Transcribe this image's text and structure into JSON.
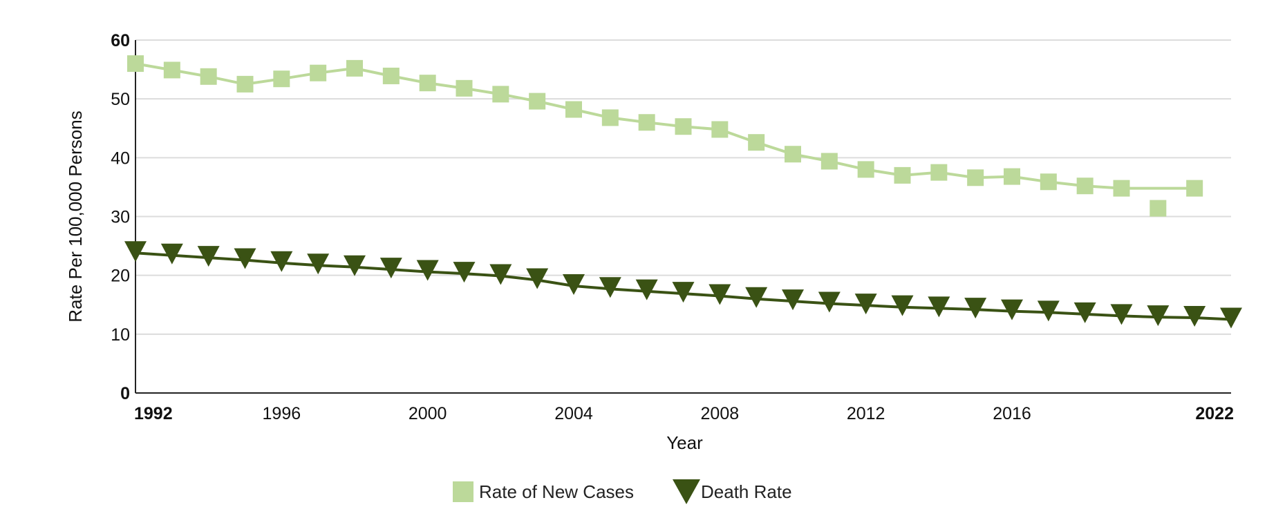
{
  "chart_data": {
    "type": "line",
    "xlabel": "Year",
    "ylabel": "Rate Per 100,000 Persons",
    "xlim": [
      1992,
      2022
    ],
    "ylim": [
      0,
      60
    ],
    "x_ticks": [
      {
        "value": 1992,
        "label": "1992",
        "bold": true
      },
      {
        "value": 1996,
        "label": "1996",
        "bold": false
      },
      {
        "value": 2000,
        "label": "2000",
        "bold": false
      },
      {
        "value": 2004,
        "label": "2004",
        "bold": false
      },
      {
        "value": 2008,
        "label": "2008",
        "bold": false
      },
      {
        "value": 2012,
        "label": "2012",
        "bold": false
      },
      {
        "value": 2016,
        "label": "2016",
        "bold": false
      },
      {
        "value": 2022,
        "label": "2022",
        "bold": true
      }
    ],
    "y_ticks": [
      {
        "value": 0,
        "label": "0",
        "bold": true
      },
      {
        "value": 10,
        "label": "10",
        "bold": false
      },
      {
        "value": 20,
        "label": "20",
        "bold": false
      },
      {
        "value": 30,
        "label": "30",
        "bold": false
      },
      {
        "value": 40,
        "label": "40",
        "bold": false
      },
      {
        "value": 50,
        "label": "50",
        "bold": false
      },
      {
        "value": 60,
        "label": "60",
        "bold": true
      }
    ],
    "grid": true,
    "legend_position": "bottom-center",
    "series": [
      {
        "name": "Rate of New Cases",
        "color": "#bcd99a",
        "marker": "square",
        "line_end_year": 2021,
        "points": [
          {
            "x": 1992,
            "y": 56.0
          },
          {
            "x": 1993,
            "y": 54.9
          },
          {
            "x": 1994,
            "y": 53.8
          },
          {
            "x": 1995,
            "y": 52.5
          },
          {
            "x": 1996,
            "y": 53.4
          },
          {
            "x": 1997,
            "y": 54.4
          },
          {
            "x": 1998,
            "y": 55.2
          },
          {
            "x": 1999,
            "y": 53.9
          },
          {
            "x": 2000,
            "y": 52.7
          },
          {
            "x": 2001,
            "y": 51.8
          },
          {
            "x": 2002,
            "y": 50.8
          },
          {
            "x": 2003,
            "y": 49.6
          },
          {
            "x": 2004,
            "y": 48.2
          },
          {
            "x": 2005,
            "y": 46.8
          },
          {
            "x": 2006,
            "y": 46.0
          },
          {
            "x": 2007,
            "y": 45.3
          },
          {
            "x": 2008,
            "y": 44.8
          },
          {
            "x": 2009,
            "y": 42.6
          },
          {
            "x": 2010,
            "y": 40.6
          },
          {
            "x": 2011,
            "y": 39.4
          },
          {
            "x": 2012,
            "y": 38.0
          },
          {
            "x": 2013,
            "y": 37.0
          },
          {
            "x": 2014,
            "y": 37.5
          },
          {
            "x": 2015,
            "y": 36.6
          },
          {
            "x": 2016,
            "y": 36.8
          },
          {
            "x": 2017,
            "y": 35.9
          },
          {
            "x": 2018,
            "y": 35.2
          },
          {
            "x": 2019,
            "y": 34.8
          },
          {
            "x": 2020,
            "y": 31.4
          },
          {
            "x": 2021,
            "y": 34.8
          }
        ]
      },
      {
        "name": "Death Rate",
        "color": "#3a5214",
        "marker": "triangle-down",
        "line_end_year": 2022,
        "points": [
          {
            "x": 1992,
            "y": 23.8
          },
          {
            "x": 1993,
            "y": 23.4
          },
          {
            "x": 1994,
            "y": 23.0
          },
          {
            "x": 1995,
            "y": 22.6
          },
          {
            "x": 1996,
            "y": 22.1
          },
          {
            "x": 1997,
            "y": 21.7
          },
          {
            "x": 1998,
            "y": 21.4
          },
          {
            "x": 1999,
            "y": 21.0
          },
          {
            "x": 2000,
            "y": 20.6
          },
          {
            "x": 2001,
            "y": 20.3
          },
          {
            "x": 2002,
            "y": 19.9
          },
          {
            "x": 2003,
            "y": 19.2
          },
          {
            "x": 2004,
            "y": 18.2
          },
          {
            "x": 2005,
            "y": 17.7
          },
          {
            "x": 2006,
            "y": 17.3
          },
          {
            "x": 2007,
            "y": 16.9
          },
          {
            "x": 2008,
            "y": 16.5
          },
          {
            "x": 2009,
            "y": 16.0
          },
          {
            "x": 2010,
            "y": 15.6
          },
          {
            "x": 2011,
            "y": 15.2
          },
          {
            "x": 2012,
            "y": 14.9
          },
          {
            "x": 2013,
            "y": 14.6
          },
          {
            "x": 2014,
            "y": 14.4
          },
          {
            "x": 2015,
            "y": 14.2
          },
          {
            "x": 2016,
            "y": 13.9
          },
          {
            "x": 2017,
            "y": 13.7
          },
          {
            "x": 2018,
            "y": 13.4
          },
          {
            "x": 2019,
            "y": 13.1
          },
          {
            "x": 2020,
            "y": 12.9
          },
          {
            "x": 2021,
            "y": 12.8
          },
          {
            "x": 2022,
            "y": 12.5
          }
        ]
      }
    ]
  }
}
